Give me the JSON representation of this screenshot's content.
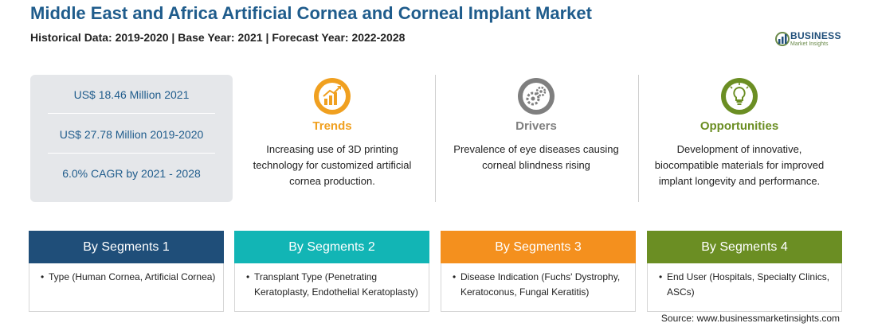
{
  "header": {
    "title": "Middle East and Africa Artificial Cornea and Corneal Implant Market",
    "subtitle": "Historical Data: 2019-2020 | Base Year: 2021 | Forecast Year: 2022-2028"
  },
  "logo": {
    "name": "BUSINESS",
    "tagline": "Market Insights"
  },
  "stats": [
    "US$ 18.46 Million 2021",
    "US$ 27.78 Million 2019-2020",
    "6.0% CAGR by 2021 - 2028"
  ],
  "highlights": [
    {
      "label": "Trends",
      "color": "#f0a020",
      "icon": "trend-chart-icon",
      "description": "Increasing use of 3D printing technology for customized artificial cornea production."
    },
    {
      "label": "Drivers",
      "color": "#7f7f7f",
      "icon": "gears-icon",
      "description": "Prevalence of eye diseases causing corneal blindness rising"
    },
    {
      "label": "Opportunities",
      "color": "#6b8e23",
      "icon": "lightbulb-icon",
      "description": "Development of innovative, biocompatible materials for improved implant longevity and performance."
    }
  ],
  "segments": [
    {
      "title": "By Segments 1",
      "color": "#1f4e79",
      "item": "Type (Human Cornea, Artificial Cornea)"
    },
    {
      "title": "By Segments 2",
      "color": "#12b5b5",
      "item": "Transplant Type (Penetrating Keratoplasty, Endothelial Keratoplasty)"
    },
    {
      "title": "By Segments 3",
      "color": "#f4901e",
      "item": "Disease Indication (Fuchs' Dystrophy, Keratoconus, Fungal Keratitis)"
    },
    {
      "title": "By Segments 4",
      "color": "#6b8e23",
      "item": "End User (Hospitals, Specialty Clinics, ASCs)"
    }
  ],
  "bullet": "•",
  "source": "Source: www.businessmarketinsights.com"
}
